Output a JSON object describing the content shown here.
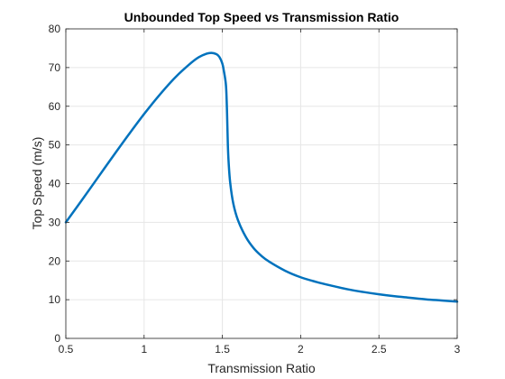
{
  "chart_data": {
    "type": "line",
    "title": "Unbounded Top Speed vs Transmission Ratio",
    "xlabel": "Transmission Ratio",
    "ylabel": "Top Speed (m/s)",
    "xlim": [
      0.5,
      3
    ],
    "ylim": [
      0,
      80
    ],
    "xticks": [
      0.5,
      1,
      1.5,
      2,
      2.5,
      3
    ],
    "xtick_labels": [
      "0.5",
      "1",
      "1.5",
      "2",
      "2.5",
      "3"
    ],
    "yticks": [
      0,
      10,
      20,
      30,
      40,
      50,
      60,
      70,
      80
    ],
    "ytick_labels": [
      "0",
      "10",
      "20",
      "30",
      "40",
      "50",
      "60",
      "70",
      "80"
    ],
    "grid": true,
    "line_color": "#0072BD",
    "series": [
      {
        "x": [
          0.5,
          0.6,
          0.7,
          0.8,
          0.9,
          1.0,
          1.1,
          1.2,
          1.3,
          1.35,
          1.4,
          1.43,
          1.46,
          1.48,
          1.5,
          1.51,
          1.52,
          1.525,
          1.53,
          1.535,
          1.54,
          1.55,
          1.57,
          1.6,
          1.65,
          1.7,
          1.75,
          1.8,
          1.9,
          2.0,
          2.1,
          2.2,
          2.3,
          2.4,
          2.5,
          2.6,
          2.7,
          2.8,
          2.9,
          3.0
        ],
        "y": [
          30,
          35.6,
          41.3,
          47,
          52.6,
          58,
          63,
          67.5,
          71.2,
          72.7,
          73.6,
          73.8,
          73.5,
          72.8,
          71,
          69,
          66.5,
          64,
          58,
          50,
          45.5,
          40.2,
          34.8,
          30.5,
          26.2,
          23.3,
          21.3,
          19.8,
          17.5,
          15.8,
          14.6,
          13.6,
          12.7,
          12,
          11.4,
          10.9,
          10.5,
          10.1,
          9.8,
          9.5
        ]
      }
    ]
  }
}
